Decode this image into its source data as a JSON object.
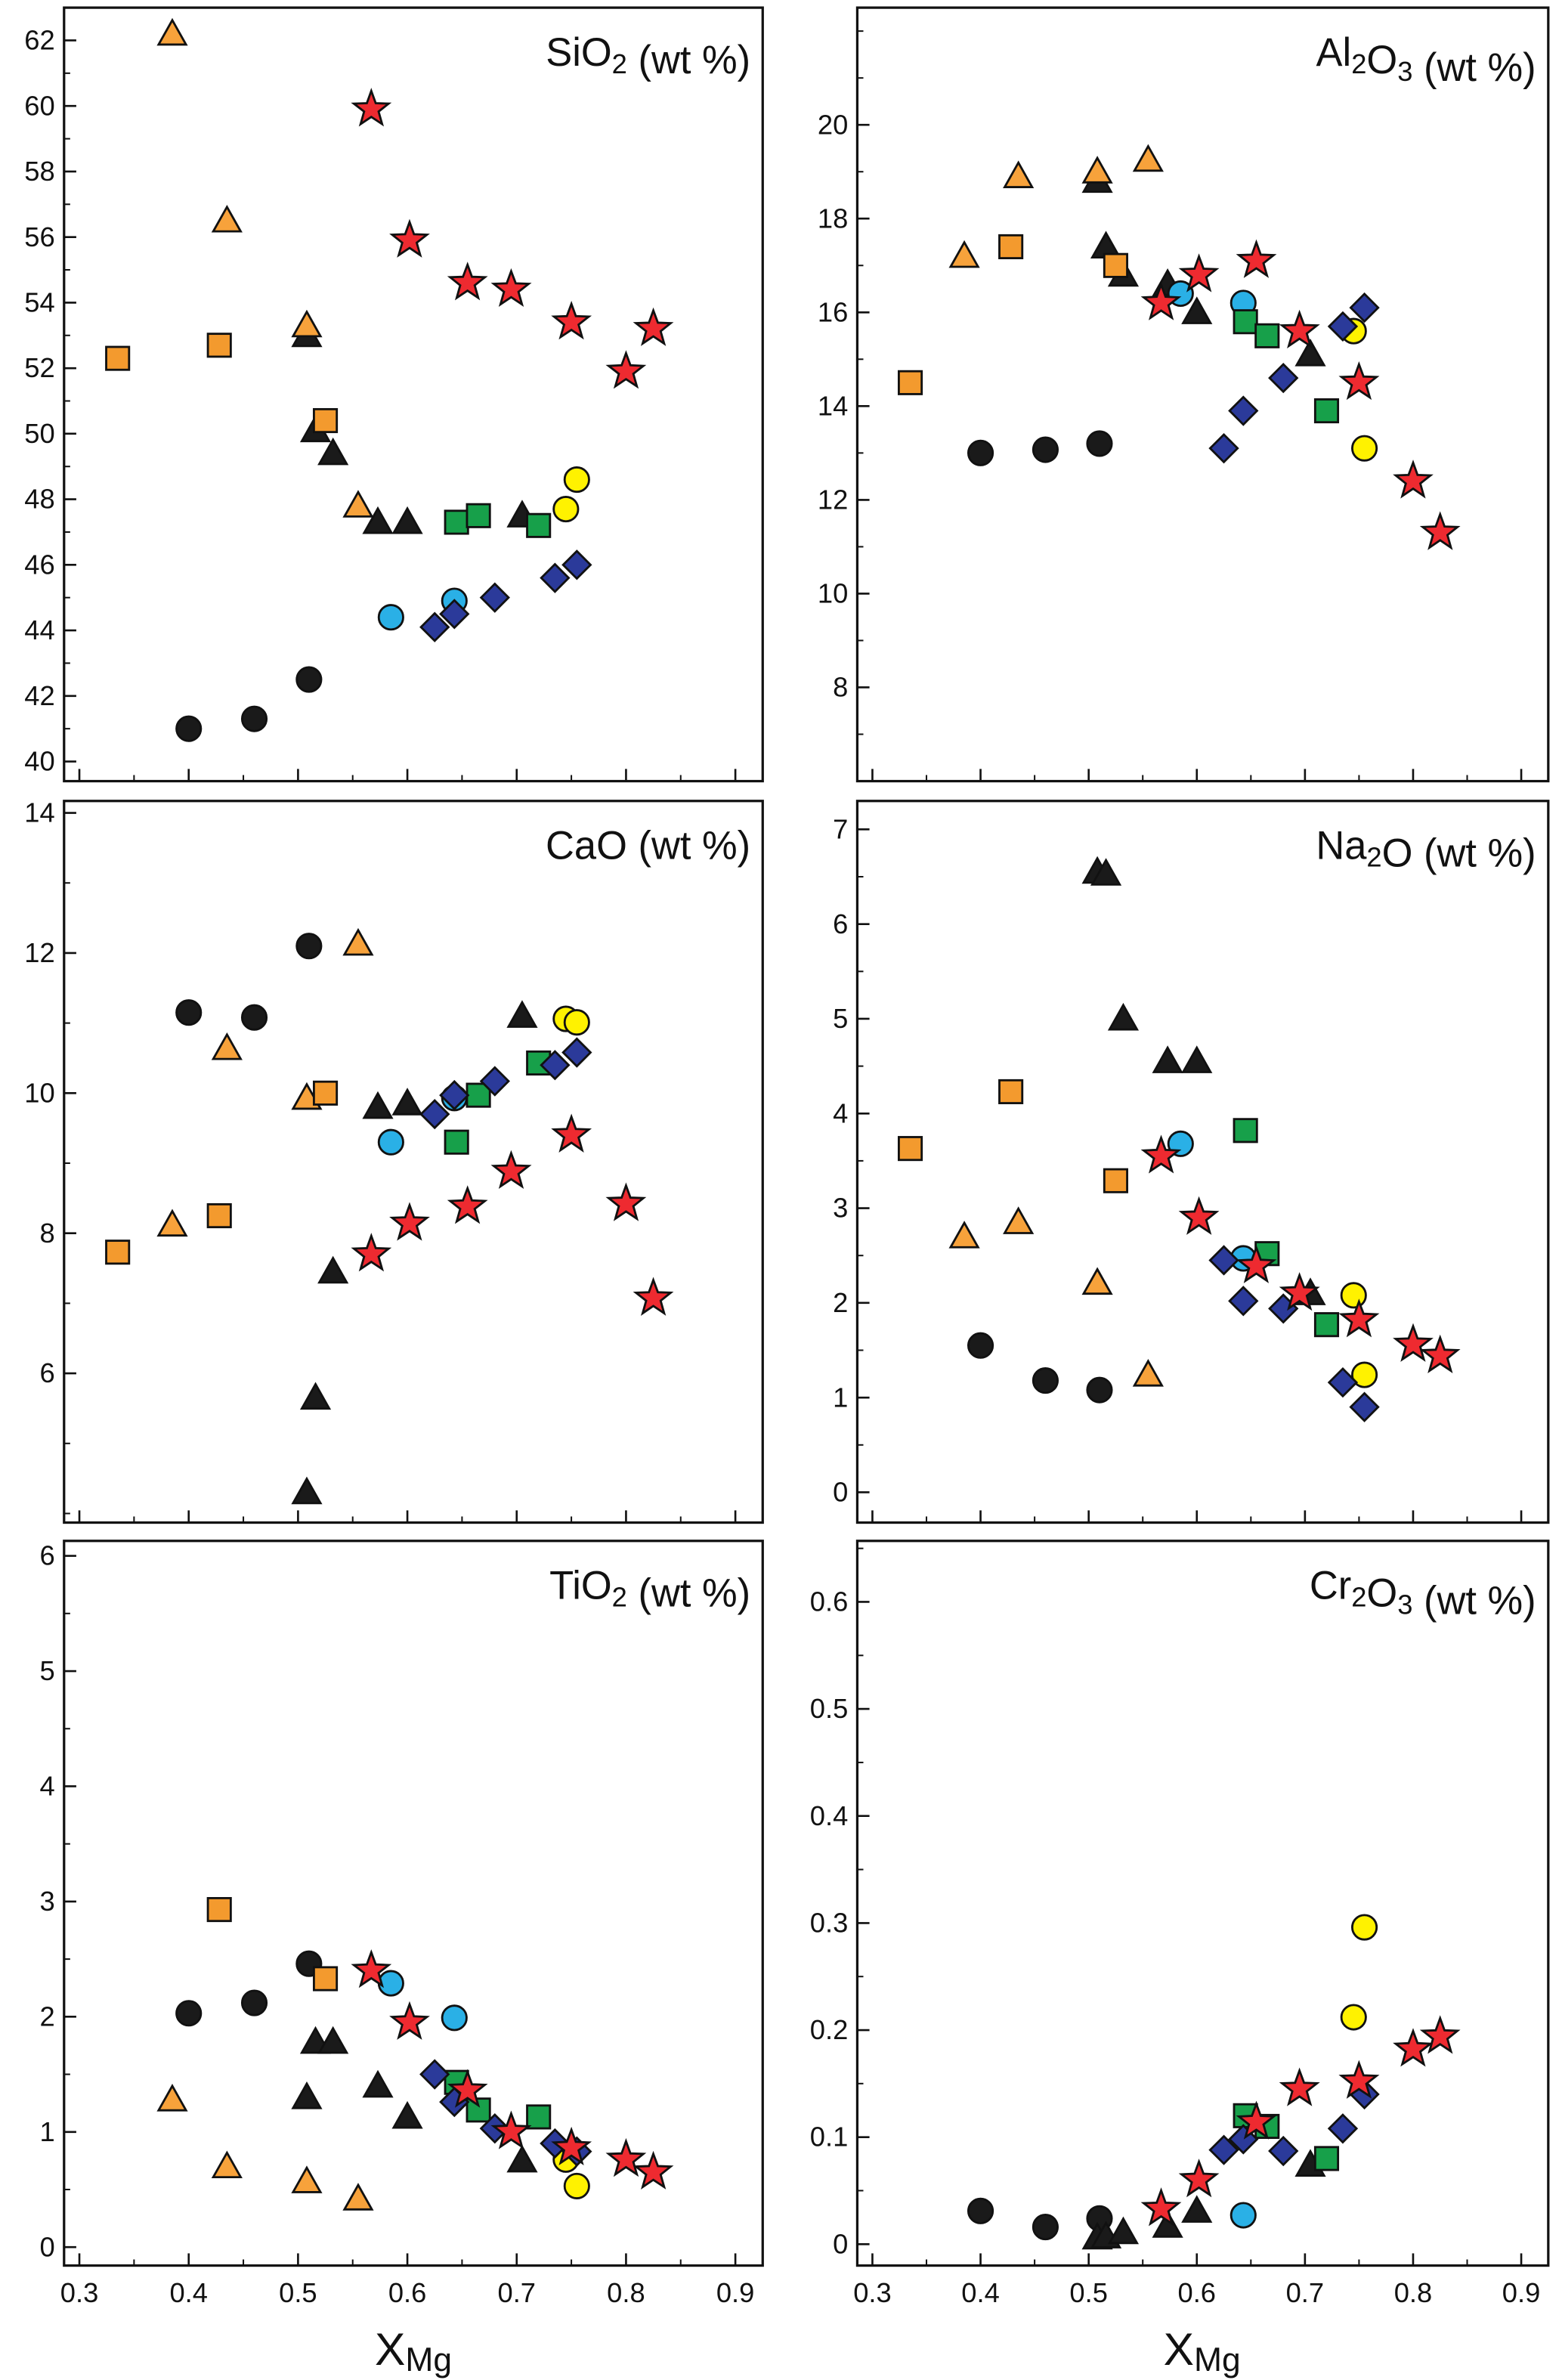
{
  "chart_data": {
    "type": "scatter",
    "xlabel": {
      "main": "X",
      "sub": "Mg"
    },
    "xlim": [
      0.286,
      0.925
    ],
    "xticks": [
      "0.3",
      "0.4",
      "0.5",
      "0.6",
      "0.7",
      "0.8",
      "0.9"
    ],
    "markers": [
      {
        "marker": "circle",
        "color": "#1a1a1a",
        "x": [
          0.4,
          0.46,
          0.51
        ]
      },
      {
        "marker": "triangle",
        "color": "#1a1a1a",
        "x": [
          0.508,
          0.516,
          0.532,
          0.573,
          0.6,
          0.705
        ]
      },
      {
        "marker": "triangle",
        "color": "#f7a23b",
        "x": [
          0.385,
          0.435,
          0.508,
          0.555
        ]
      },
      {
        "marker": "square",
        "color": "#f39a2e",
        "x": [
          0.335,
          0.428,
          0.525
        ]
      },
      {
        "marker": "circle",
        "color": "#2ab0e6",
        "x": [
          0.585,
          0.643
        ]
      },
      {
        "marker": "square",
        "color": "#17a04a",
        "x": [
          0.645,
          0.665,
          0.72
        ]
      },
      {
        "marker": "circle",
        "color": "#fff200",
        "x": [
          0.745,
          0.755
        ]
      },
      {
        "marker": "diamond",
        "color": "#2b3a9a",
        "x": [
          0.625,
          0.643,
          0.68,
          0.735,
          0.755
        ]
      },
      {
        "marker": "star",
        "color": "#ee2a30",
        "x": [
          0.567,
          0.602,
          0.655,
          0.695,
          0.75,
          0.8,
          0.825
        ]
      }
    ],
    "panels": [
      {
        "title": "SiO2 (wt %)",
        "ylim": [
          39.4,
          63.0
        ],
        "yticks": [
          "40",
          "42",
          "44",
          "46",
          "48",
          "50",
          "52",
          "54",
          "56",
          "58",
          "60",
          "62"
        ],
        "minor": 1,
        "y": [
          [
            41.0,
            41.3,
            42.5
          ],
          [
            53.0,
            50.1,
            49.4,
            47.3,
            47.3,
            47.5
          ],
          [
            62.2,
            56.5,
            53.3,
            47.8
          ],
          [
            52.3,
            52.7,
            50.4
          ],
          [
            44.4,
            44.9
          ],
          [
            47.3,
            47.5,
            47.2
          ],
          [
            47.7,
            48.6
          ],
          [
            44.1,
            44.5,
            45.0,
            45.6,
            46.0
          ],
          [
            59.9,
            55.9,
            54.6,
            54.4,
            53.4,
            51.9,
            53.2
          ]
        ]
      },
      {
        "title": "Al2O3 (wt %)",
        "ylim": [
          6.0,
          22.5
        ],
        "yticks": [
          "8",
          "10",
          "12",
          "14",
          "16",
          "18",
          "20"
        ],
        "minor": 1,
        "y": [
          [
            13.0,
            13.07,
            13.2
          ],
          [
            18.8,
            17.4,
            16.8,
            16.6,
            16.0,
            15.1
          ],
          [
            17.2,
            18.9,
            19.0,
            19.25
          ],
          [
            14.5,
            17.4,
            17.0
          ],
          [
            16.4,
            16.2
          ],
          [
            15.8,
            15.5,
            13.9
          ],
          [
            15.6,
            13.1
          ],
          [
            13.1,
            13.9,
            14.6,
            15.7,
            16.1
          ],
          [
            16.2,
            16.8,
            17.1,
            15.6,
            14.5,
            12.4,
            11.3
          ]
        ]
      },
      {
        "title": "CaO (wt %)",
        "ylim": [
          3.87,
          14.17
        ],
        "yticks": [
          "6",
          "8",
          "10",
          "12",
          "14"
        ],
        "minor": 1,
        "y": [
          [
            11.15,
            11.08,
            12.1
          ],
          [
            4.3,
            5.65,
            7.45,
            9.8,
            9.85,
            11.1
          ],
          [
            8.12,
            10.64,
            9.93,
            12.13
          ],
          [
            7.73,
            8.25,
            10.0
          ],
          [
            9.3,
            9.93
          ],
          [
            9.3,
            9.97,
            10.43
          ],
          [
            11.06,
            11.01
          ],
          [
            9.7,
            9.97,
            10.17,
            10.4,
            10.58
          ],
          [
            7.7,
            8.14,
            8.38,
            8.88,
            9.4,
            8.42,
            7.07
          ]
        ]
      },
      {
        "title": "Na2O (wt %)",
        "ylim": [
          -0.32,
          7.3
        ],
        "yticks": [
          "0",
          "1",
          "2",
          "3",
          "4",
          "5",
          "6",
          "7"
        ],
        "minor": 0.5,
        "y": [
          [
            1.55,
            1.18,
            1.08
          ],
          [
            6.55,
            6.53,
            5.0,
            4.55,
            4.55,
            2.1
          ],
          [
            2.7,
            2.85,
            2.21,
            1.24
          ],
          [
            3.63,
            4.23,
            3.29
          ],
          [
            3.68,
            2.47
          ],
          [
            3.82,
            2.52,
            1.77
          ],
          [
            2.08,
            1.24
          ],
          [
            2.45,
            2.02,
            1.94,
            1.16,
            0.9
          ],
          [
            3.55,
            2.9,
            2.39,
            2.1,
            1.82,
            1.56,
            1.44
          ]
        ]
      },
      {
        "title": "TiO2 (wt %)",
        "ylim": [
          -0.16,
          6.13
        ],
        "yticks": [
          "0",
          "1",
          "2",
          "3",
          "4",
          "5",
          "6"
        ],
        "minor": 0.5,
        "y": [
          [
            2.03,
            2.12,
            2.46
          ],
          [
            1.3,
            1.78,
            1.78,
            1.4,
            1.13,
            0.75
          ],
          [
            1.28,
            0.7,
            0.57,
            0.42
          ],
          [
            null,
            2.93,
            2.33
          ],
          [
            2.29,
            1.99
          ],
          [
            1.43,
            1.19,
            1.13
          ],
          [
            0.76,
            0.53
          ],
          [
            1.5,
            1.26,
            1.03,
            0.9,
            0.83
          ],
          [
            2.4,
            1.95,
            1.36,
            1.0,
            0.86,
            0.76,
            0.65
          ]
        ]
      },
      {
        "title": "Cr2O3 (wt %)",
        "ylim": [
          -0.02,
          0.657
        ],
        "yticks": [
          "0",
          "0.1",
          "0.2",
          "0.3",
          "0.4",
          "0.5",
          "0.6"
        ],
        "minor": 0.05,
        "y": [
          [
            0.031,
            0.016,
            0.024
          ],
          [
            0.006,
            0.007,
            0.011,
            0.017,
            0.031,
            0.074
          ],
          [
            null,
            null,
            null,
            null
          ],
          [
            null,
            null,
            null
          ],
          [
            null,
            0.027
          ],
          [
            0.12,
            0.11,
            0.08
          ],
          [
            0.212,
            0.296
          ],
          [
            0.088,
            0.098,
            0.087,
            0.108,
            0.14
          ],
          [
            0.033,
            0.06,
            0.114,
            0.145,
            0.152,
            0.182,
            0.194
          ]
        ]
      }
    ]
  }
}
